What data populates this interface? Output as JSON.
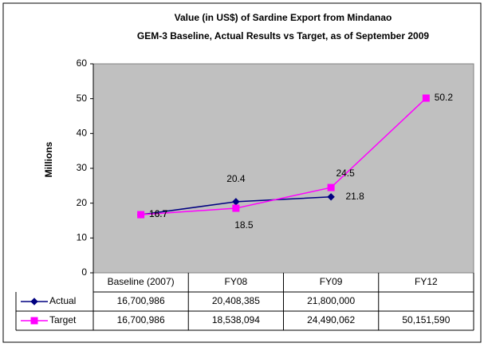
{
  "chart_data": {
    "type": "line",
    "title": "Value (in US$) of Sardine Export from Mindanao",
    "subtitle": "GEM-3 Baseline, Actual Results vs Target, as of September 2009",
    "y_label": "Millions",
    "categories": [
      "Baseline (2007)",
      "FY08",
      "FY09",
      "FY12"
    ],
    "series": [
      {
        "name": "Actual",
        "color": "#000080",
        "marker": "diamond",
        "values": [
          16.700986,
          20.408385,
          21.8,
          null
        ],
        "value_labels": [
          "16.7",
          "20.4",
          "21.8",
          null
        ],
        "table_values": [
          "16,700,986",
          "20,408,385",
          "21,800,000",
          null
        ]
      },
      {
        "name": "Target",
        "color": "#ff00ff",
        "marker": "square",
        "values": [
          16.700986,
          18.538094,
          24.490062,
          50.15159
        ],
        "value_labels": [
          "16.7",
          "18.5",
          "24.5",
          "50.2"
        ],
        "table_values": [
          "16,700,986",
          "18,538,094",
          "24,490,062",
          "50,151,590"
        ]
      }
    ],
    "ylim": [
      0,
      60
    ],
    "yticks": [
      0,
      10,
      20,
      30,
      40,
      50,
      60
    ],
    "grid": false
  }
}
